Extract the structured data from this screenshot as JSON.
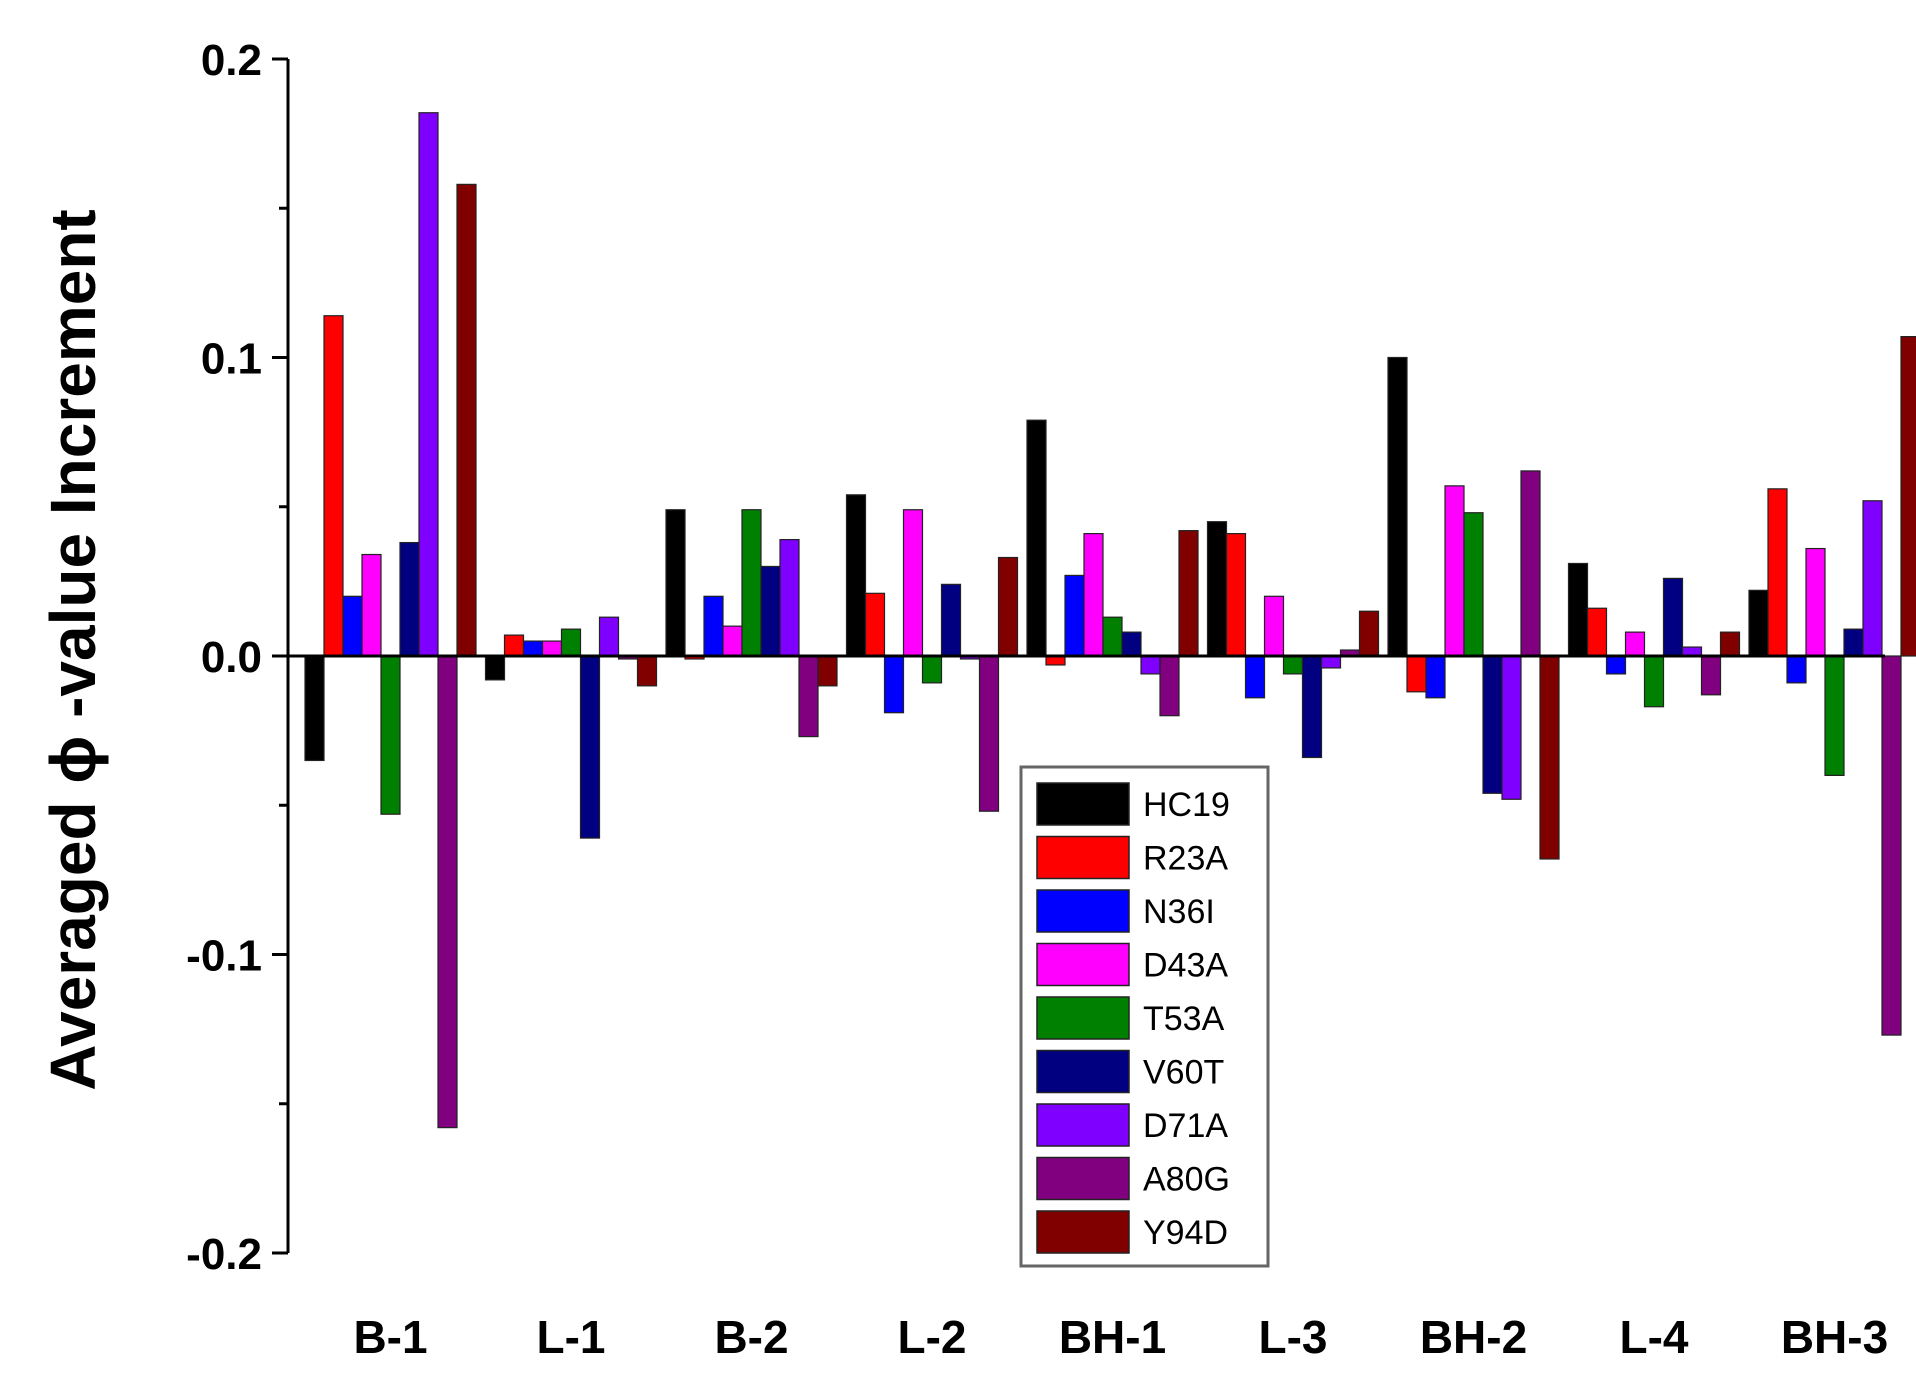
{
  "chart_data": {
    "type": "bar",
    "ylabel": "Averaged ϕ -value Increment",
    "ylim": [
      -0.2,
      0.2
    ],
    "yticks": [
      -0.2,
      -0.1,
      0.0,
      0.1,
      0.2
    ],
    "ytick_labels": [
      "-0.2",
      "-0.1",
      "0.0",
      "0.1",
      "0.2"
    ],
    "grid": false,
    "legend_position": "bottom-center",
    "categories": [
      "B-1",
      "L-1",
      "B-2",
      "L-2",
      "BH-1",
      "L-3",
      "BH-2",
      "L-4",
      "BH-3"
    ],
    "series": [
      {
        "name": "HC19",
        "color": "#000000",
        "values": [
          -0.035,
          -0.008,
          0.049,
          0.054,
          0.079,
          0.045,
          0.1,
          0.031,
          0.022
        ]
      },
      {
        "name": "R23A",
        "color": "#ff0000",
        "values": [
          0.114,
          0.007,
          -0.001,
          0.021,
          -0.003,
          0.041,
          -0.012,
          0.016,
          0.056
        ]
      },
      {
        "name": "N36I",
        "color": "#0000ff",
        "values": [
          0.02,
          0.005,
          0.02,
          -0.019,
          0.027,
          -0.014,
          -0.014,
          -0.006,
          -0.009
        ]
      },
      {
        "name": "D43A",
        "color": "#ff00ff",
        "values": [
          0.034,
          0.005,
          0.01,
          0.049,
          0.041,
          0.02,
          0.057,
          0.008,
          0.036
        ]
      },
      {
        "name": "T53A",
        "color": "#008000",
        "values": [
          -0.053,
          0.009,
          0.049,
          -0.009,
          0.013,
          -0.006,
          0.048,
          -0.017,
          -0.04
        ]
      },
      {
        "name": "V60T",
        "color": "#000080",
        "values": [
          0.038,
          -0.061,
          0.03,
          0.024,
          0.008,
          -0.034,
          -0.046,
          0.026,
          0.009
        ]
      },
      {
        "name": "D71A",
        "color": "#8000ff",
        "values": [
          0.182,
          0.013,
          0.039,
          -0.001,
          -0.006,
          -0.004,
          -0.048,
          0.003,
          0.052
        ]
      },
      {
        "name": "A80G",
        "color": "#800080",
        "values": [
          -0.158,
          -0.001,
          -0.027,
          -0.052,
          -0.02,
          0.002,
          0.062,
          -0.013,
          -0.127
        ]
      },
      {
        "name": "Y94D",
        "color": "#800000",
        "values": [
          0.158,
          -0.01,
          -0.01,
          0.033,
          0.042,
          0.015,
          -0.068,
          0.008,
          0.107
        ]
      }
    ]
  }
}
